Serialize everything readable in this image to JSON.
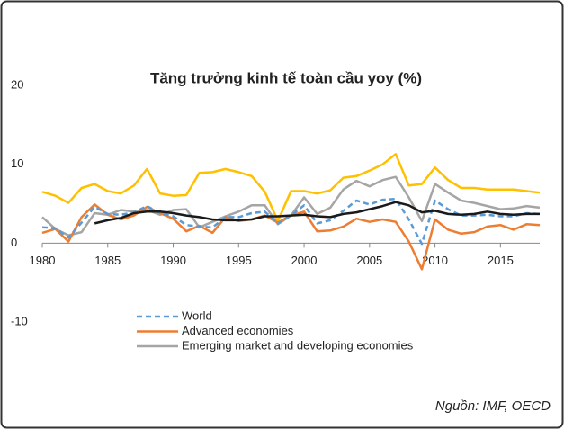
{
  "chart_data": {
    "type": "line",
    "title": "Tăng trưởng kinh tế  toàn cầu yoy (%)",
    "source": "Nguồn: IMF, OECD",
    "x": [
      1980,
      1981,
      1982,
      1983,
      1984,
      1985,
      1986,
      1987,
      1988,
      1989,
      1990,
      1991,
      1992,
      1993,
      1994,
      1995,
      1996,
      1997,
      1998,
      1999,
      2000,
      2001,
      2002,
      2003,
      2004,
      2005,
      2006,
      2007,
      2008,
      2009,
      2010,
      2011,
      2012,
      2013,
      2014,
      2015,
      2016,
      2017,
      2018
    ],
    "xlim": [
      1980,
      2018
    ],
    "xticks": [
      1980,
      1985,
      1990,
      1995,
      2000,
      2005,
      2010,
      2015
    ],
    "ylim": [
      -10,
      20
    ],
    "yticks": [
      -10,
      0,
      10,
      20
    ],
    "series": [
      {
        "color": "#ffc000",
        "values": [
          6.5,
          6.0,
          5.1,
          7.0,
          7.5,
          6.6,
          6.3,
          7.3,
          9.4,
          6.3,
          6.0,
          6.1,
          8.9,
          9.0,
          9.4,
          9.0,
          8.5,
          6.5,
          2.8,
          6.6,
          6.6,
          6.3,
          6.7,
          8.3,
          8.5,
          9.2,
          10.0,
          11.3,
          7.3,
          7.5,
          9.6,
          8.0,
          7.0,
          7.0,
          6.8,
          6.8,
          6.8,
          6.6,
          6.4
        ]
      },
      {
        "name": "Emerging market and developing economies",
        "color": "#a5a5a5",
        "values": [
          3.3,
          1.8,
          1.0,
          1.4,
          3.8,
          3.6,
          4.2,
          4.0,
          4.2,
          3.6,
          4.2,
          4.3,
          2.0,
          2.7,
          3.4,
          4.0,
          4.8,
          4.8,
          2.4,
          3.5,
          5.8,
          3.7,
          4.5,
          6.8,
          7.9,
          7.2,
          8.0,
          8.4,
          5.8,
          2.8,
          7.5,
          6.4,
          5.4,
          5.1,
          4.7,
          4.3,
          4.4,
          4.7,
          4.5
        ]
      },
      {
        "name": "Advanced economies",
        "color": "#ed7d31",
        "values": [
          1.3,
          1.8,
          0.2,
          3.3,
          4.9,
          3.6,
          3.0,
          3.5,
          4.6,
          3.8,
          3.1,
          1.5,
          2.2,
          1.3,
          3.3,
          2.8,
          3.0,
          3.5,
          2.6,
          3.5,
          4.0,
          1.5,
          1.6,
          2.1,
          3.1,
          2.7,
          3.0,
          2.7,
          0.2,
          -3.3,
          3.0,
          1.7,
          1.2,
          1.4,
          2.1,
          2.3,
          1.7,
          2.4,
          2.3
        ]
      },
      {
        "name": "World",
        "color": "#5b9bd5",
        "dashed": true,
        "values": [
          2.0,
          1.9,
          0.7,
          2.6,
          4.6,
          3.7,
          3.6,
          3.9,
          4.7,
          3.8,
          3.4,
          2.3,
          2.1,
          2.0,
          3.3,
          3.3,
          3.8,
          4.0,
          2.5,
          3.5,
          4.8,
          2.5,
          2.9,
          4.1,
          5.4,
          4.9,
          5.5,
          5.6,
          3.0,
          -0.1,
          5.4,
          4.3,
          3.5,
          3.5,
          3.6,
          3.4,
          3.4,
          3.8,
          3.7
        ]
      },
      {
        "color": "#1a1a1a",
        "values": [
          null,
          null,
          null,
          null,
          2.5,
          2.9,
          3.2,
          3.8,
          4.0,
          4.0,
          3.8,
          3.5,
          3.3,
          3.0,
          2.9,
          2.9,
          3.0,
          3.4,
          3.4,
          3.5,
          3.6,
          3.4,
          3.3,
          3.7,
          3.9,
          4.3,
          4.7,
          5.2,
          4.8,
          3.9,
          4.1,
          3.7,
          3.6,
          3.7,
          4.0,
          3.7,
          3.6,
          3.7,
          3.7
        ]
      }
    ],
    "legend_order": [
      3,
      2,
      1
    ]
  }
}
